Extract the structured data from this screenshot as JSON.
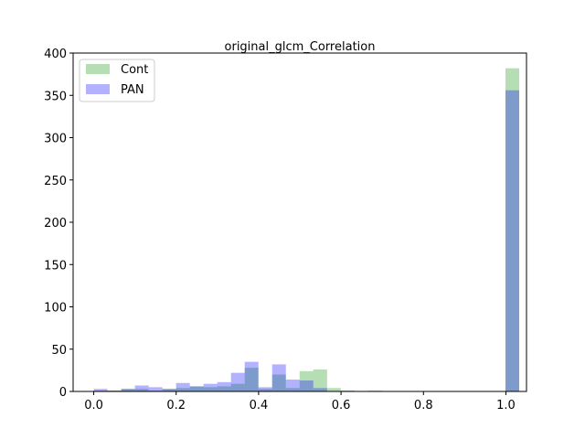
{
  "chart_data": {
    "type": "bar",
    "title": "original_glcm_Correlation",
    "xlabel": "",
    "ylabel": "",
    "xlim": [
      -0.05,
      1.05
    ],
    "ylim": [
      0,
      400
    ],
    "x_ticks": [
      0.0,
      0.2,
      0.4,
      0.6,
      0.8,
      1.0
    ],
    "x_tick_labels": [
      "0.0",
      "0.2",
      "0.4",
      "0.6",
      "0.8",
      "1.0"
    ],
    "y_ticks": [
      0,
      50,
      100,
      150,
      200,
      250,
      300,
      350,
      400
    ],
    "y_tick_labels": [
      "0",
      "50",
      "100",
      "150",
      "200",
      "250",
      "300",
      "350",
      "400"
    ],
    "grid": false,
    "legend_position": "top-left",
    "histogram": true,
    "bin_start": 0.0,
    "bin_width": 0.0333,
    "series": [
      {
        "name": "Cont",
        "color": "#2ca02c",
        "opacity": 0.35,
        "values": [
          1,
          1,
          3,
          3,
          1,
          3,
          4,
          6,
          5,
          6,
          9,
          28,
          3,
          20,
          4,
          24,
          26,
          4,
          0,
          0,
          1,
          0,
          0,
          0,
          0,
          0,
          0,
          0,
          0,
          0,
          382
        ]
      },
      {
        "name": "PAN",
        "color": "#0000ff",
        "opacity": 0.3,
        "values": [
          3,
          1,
          3,
          7,
          5,
          3,
          10,
          6,
          9,
          11,
          22,
          35,
          5,
          32,
          14,
          13,
          4,
          0,
          1,
          0,
          0,
          0,
          0,
          0,
          0,
          0,
          0,
          0,
          0,
          0,
          356
        ]
      }
    ]
  }
}
